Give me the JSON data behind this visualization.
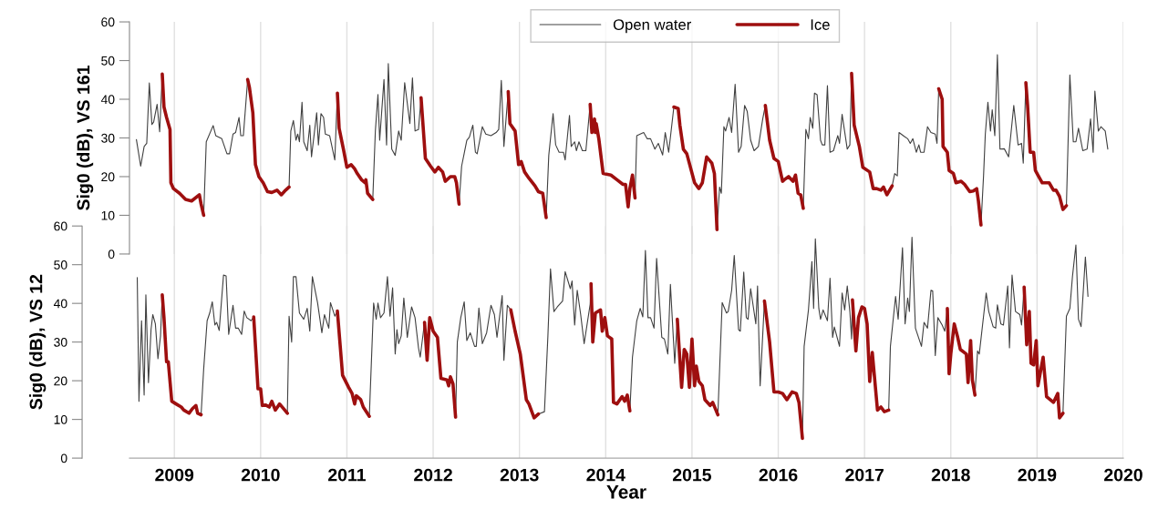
{
  "chart_data": [
    {
      "type": "line",
      "ylabel": "Sig0 (dB), VS 161",
      "xlim": [
        2008.48,
        2020
      ],
      "xticks": [
        2009,
        2010,
        2011,
        2012,
        2013,
        2014,
        2015,
        2016,
        2017,
        2018,
        2019,
        2020
      ],
      "ylim": [
        0,
        60
      ],
      "yticks": [
        0,
        10,
        20,
        30,
        40,
        50,
        60
      ],
      "tick_labels": "y",
      "grid": "x",
      "legend": "top",
      "series": [
        {
          "name": "Open water",
          "color": "#404040",
          "x": [
            2008.56,
            2008.61,
            2008.65,
            2008.68,
            2008.71,
            2008.74,
            2008.76,
            2008.8,
            2008.83,
            2008.86,
            null,
            2009.34,
            2009.37,
            2009.45,
            2009.48,
            2009.55,
            2009.61,
            2009.64,
            2009.68,
            2009.71,
            2009.75,
            2009.77,
            2009.8,
            2009.85,
            null,
            2010.33,
            2010.35,
            2010.38,
            2010.41,
            2010.43,
            2010.45,
            2010.48,
            2010.5,
            2010.54,
            2010.57,
            2010.59,
            2010.65,
            2010.67,
            2010.7,
            2010.73,
            2010.75,
            2010.8,
            2010.86,
            2010.89,
            null,
            2011.3,
            2011.33,
            2011.36,
            2011.38,
            2011.43,
            2011.46,
            2011.48,
            2011.52,
            2011.56,
            2011.6,
            2011.63,
            2011.67,
            2011.73,
            2011.76,
            2011.79,
            2011.83,
            2011.86,
            null,
            2012.3,
            2012.33,
            2012.39,
            2012.42,
            2012.46,
            2012.49,
            2012.51,
            2012.57,
            2012.61,
            2012.67,
            2012.73,
            2012.76,
            2012.79,
            2012.82,
            2012.87,
            null,
            2013.31,
            2013.34,
            2013.39,
            2013.42,
            2013.46,
            2013.51,
            2013.53,
            2013.58,
            2013.6,
            2013.64,
            2013.66,
            2013.69,
            2013.73,
            2013.77,
            2013.82,
            null,
            2014.34,
            2014.36,
            2014.4,
            2014.44,
            2014.48,
            2014.52,
            2014.57,
            2014.61,
            2014.66,
            2014.69,
            2014.73,
            2014.79,
            null,
            2015.29,
            2015.32,
            2015.34,
            2015.37,
            2015.39,
            2015.43,
            2015.46,
            2015.5,
            2015.54,
            2015.57,
            2015.61,
            2015.64,
            2015.68,
            2015.72,
            2015.77,
            2015.82,
            2015.85,
            null,
            2016.29,
            2016.32,
            2016.35,
            2016.37,
            2016.4,
            2016.42,
            2016.45,
            2016.49,
            2016.51,
            2016.54,
            2016.57,
            2016.6,
            2016.64,
            2016.69,
            2016.71,
            2016.74,
            2016.8,
            2016.83,
            2016.85,
            null,
            2017.32,
            2017.35,
            2017.38,
            2017.4,
            2017.46,
            2017.5,
            2017.53,
            2017.56,
            2017.6,
            2017.63,
            2017.65,
            2017.69,
            2017.73,
            2017.77,
            2017.82,
            2017.84,
            2017.86,
            null,
            2018.35,
            2018.38,
            2018.4,
            2018.43,
            2018.46,
            2018.48,
            2018.51,
            2018.54,
            2018.57,
            2018.62,
            2018.67,
            2018.73,
            2018.78,
            2018.82,
            2018.84,
            2018.87,
            null,
            2019.34,
            2019.38,
            2019.42,
            2019.45,
            2019.48,
            2019.53,
            2019.58,
            2019.62,
            2019.65,
            2019.67,
            2019.71,
            2019.74,
            2019.79,
            2019.82
          ],
          "values": [
            29.6,
            22.7,
            27.8,
            28.6,
            44.2,
            33.5,
            34.1,
            38.7,
            31.6,
            46.5,
            null,
            10.0,
            29,
            33.2,
            30.6,
            29.8,
            25.9,
            25.9,
            31,
            31.4,
            35.3,
            30.6,
            30.6,
            45.1,
            null,
            17.3,
            31.8,
            34.5,
            29.4,
            31,
            29,
            39.2,
            29,
            26.7,
            33.3,
            25.1,
            36.5,
            28.2,
            36.3,
            35.3,
            31,
            30.6,
            24.3,
            41.6,
            null,
            14.1,
            31.8,
            41.2,
            29.4,
            45.1,
            28.2,
            49.2,
            27.1,
            25.5,
            31.8,
            29.4,
            44.3,
            33.7,
            45.5,
            31.8,
            32.2,
            40.4,
            null,
            12.9,
            22.7,
            29.4,
            30.2,
            33.3,
            26.3,
            25.9,
            32.9,
            31,
            30.6,
            31.4,
            32.2,
            44.9,
            27.8,
            42,
            null,
            9.4,
            25.5,
            36.3,
            28.2,
            26.3,
            26.3,
            24.3,
            35.8,
            27.8,
            29,
            26.7,
            29,
            26.7,
            26.7,
            38.7,
            null,
            14.5,
            30.6,
            31,
            31.4,
            29.8,
            29.8,
            27.1,
            28.6,
            25.6,
            31.4,
            26.3,
            38,
            null,
            6.3,
            17.3,
            15.7,
            32.9,
            31.8,
            35.3,
            31.4,
            43.9,
            26.3,
            27.8,
            38.4,
            36.9,
            29.4,
            26.7,
            27.8,
            34.9,
            38.4,
            null,
            11.8,
            32.2,
            29.8,
            35.3,
            32.5,
            41.6,
            41.2,
            29.4,
            28.2,
            28.2,
            43.5,
            26.3,
            26.7,
            30.6,
            28.6,
            36.1,
            27.1,
            28.2,
            46.7,
            null,
            17.6,
            20.8,
            20.2,
            31.4,
            30.4,
            29.8,
            28.6,
            29.8,
            26.3,
            28.2,
            26.3,
            26.3,
            32.9,
            31.4,
            31,
            28.6,
            42.7,
            null,
            7.5,
            20.4,
            31,
            39.2,
            31.8,
            37.3,
            30.6,
            51.5,
            27.1,
            27.2,
            25.1,
            38.4,
            28.2,
            28.6,
            23.5,
            44.3,
            null,
            12.5,
            46.3,
            29,
            29,
            32.5,
            26.7,
            27.1,
            34.9,
            26.3,
            42.1,
            31.8,
            32.9,
            31.8,
            27.1
          ]
        },
        {
          "name": "Ice",
          "color": "#9e0f0f",
          "x": [
            2008.86,
            2008.88,
            2008.91,
            2008.95,
            2008.96,
            2008.99,
            2009.06,
            2009.13,
            2009.2,
            2009.29,
            2009.31,
            2009.34,
            null,
            2009.85,
            2009.87,
            2009.91,
            2009.94,
            2009.98,
            2010.03,
            2010.08,
            2010.13,
            2010.19,
            2010.24,
            2010.29,
            2010.33,
            null,
            2010.89,
            2010.91,
            2010.96,
            2011.0,
            2011.05,
            2011.09,
            2011.12,
            2011.17,
            2011.21,
            2011.22,
            2011.24,
            2011.3,
            null,
            2011.86,
            2011.91,
            2011.97,
            2012.02,
            2012.06,
            2012.11,
            2012.14,
            2012.2,
            2012.25,
            2012.27,
            2012.3,
            null,
            2012.87,
            2012.89,
            2012.95,
            2012.99,
            2013.02,
            2013.06,
            2013.11,
            2013.18,
            2013.22,
            2013.27,
            2013.31,
            null,
            2013.82,
            2013.84,
            2013.87,
            2013.88,
            2013.89,
            2013.92,
            2013.97,
            2014.06,
            2014.13,
            2014.2,
            2014.23,
            2014.26,
            2014.28,
            2014.31,
            2014.34,
            null,
            2014.79,
            2014.84,
            2014.86,
            2014.9,
            2014.94,
            2015.03,
            2015.08,
            2015.12,
            2015.17,
            2015.23,
            2015.26,
            2015.29,
            null,
            2015.85,
            2015.9,
            2015.95,
            2016.0,
            2016.05,
            2016.07,
            2016.12,
            2016.17,
            2016.2,
            2016.23,
            2016.26,
            2016.29,
            null,
            2016.85,
            2016.88,
            2016.94,
            2016.98,
            2017.06,
            2017.1,
            2017.14,
            2017.19,
            2017.22,
            2017.26,
            2017.32,
            null,
            2017.86,
            2017.9,
            2017.91,
            2017.96,
            2017.98,
            2018.03,
            2018.06,
            2018.12,
            2018.16,
            2018.22,
            2018.26,
            2018.3,
            2018.32,
            2018.35,
            null,
            2018.87,
            2018.89,
            2018.92,
            2018.96,
            2018.98,
            2019.01,
            2019.06,
            2019.14,
            2019.19,
            2019.22,
            2019.26,
            2019.3,
            2019.34
          ],
          "values": [
            46.5,
            38,
            35.3,
            32.2,
            18.4,
            16.9,
            15.7,
            14.1,
            13.7,
            15.3,
            12.9,
            10.0,
            null,
            45.1,
            43.1,
            36.5,
            23.1,
            20,
            18.4,
            16.1,
            15.9,
            16.5,
            15.3,
            16.5,
            17.3,
            null,
            41.6,
            32.5,
            27.1,
            22.4,
            23.1,
            22,
            20.8,
            19.2,
            18.4,
            19.2,
            15.7,
            14.1,
            null,
            40.4,
            24.7,
            22.7,
            21.2,
            22.4,
            21.2,
            18.8,
            20,
            20,
            18.4,
            12.9,
            null,
            42,
            33.7,
            31.8,
            23.1,
            23.9,
            21.2,
            19.6,
            17.6,
            16.1,
            15.7,
            9.4,
            null,
            38.7,
            31.4,
            34.9,
            31.4,
            33.7,
            29.8,
            20.8,
            20.4,
            19.2,
            18,
            18,
            12.2,
            16.9,
            20.4,
            14.5,
            null,
            38,
            37.6,
            33.3,
            27.1,
            25.9,
            18.4,
            16.9,
            18.4,
            25.1,
            23.5,
            20.8,
            6.3,
            null,
            38.4,
            29.4,
            24.7,
            23.9,
            18.8,
            19.2,
            20,
            18.8,
            20.4,
            15.7,
            15.3,
            11.8,
            null,
            46.7,
            33.3,
            27.8,
            22.4,
            21.2,
            16.9,
            16.9,
            16.5,
            17.3,
            15.3,
            17.6,
            null,
            42.7,
            40,
            27.8,
            26.3,
            21.6,
            20.8,
            18.4,
            18.8,
            18,
            16.1,
            16.3,
            16.9,
            13.7,
            7.5,
            null,
            44.3,
            38.4,
            26.3,
            26.3,
            21.6,
            20.4,
            18.4,
            18.4,
            16.5,
            16.5,
            14.9,
            11.5,
            12.5
          ]
        }
      ]
    },
    {
      "type": "line",
      "xlabel": "Year",
      "ylabel": "Sig0 (dB), VS 12",
      "xlim": [
        2008.48,
        2020
      ],
      "xticks": [
        2009,
        2010,
        2011,
        2012,
        2013,
        2014,
        2015,
        2016,
        2017,
        2018,
        2019,
        2020
      ],
      "ylim": [
        0,
        60
      ],
      "yticks": [
        0,
        10,
        20,
        30,
        40,
        50,
        60
      ],
      "grid": "x",
      "legend": false,
      "series": [
        {
          "color": "#404040",
          "x": [
            2008.57,
            2008.59,
            2008.62,
            2008.65,
            2008.67,
            2008.7,
            2008.73,
            2008.75,
            2008.78,
            2008.81,
            2008.84,
            2008.86,
            null,
            2009.31,
            2009.34,
            2009.38,
            2009.41,
            2009.44,
            2009.47,
            2009.49,
            2009.52,
            2009.57,
            2009.6,
            2009.63,
            2009.68,
            2009.71,
            2009.74,
            2009.78,
            2009.81,
            2009.84,
            2009.89,
            2009.92,
            null,
            2010.31,
            2010.33,
            2010.36,
            2010.38,
            2010.41,
            2010.45,
            2010.5,
            2010.54,
            2010.57,
            2010.6,
            2010.66,
            2010.71,
            2010.74,
            2010.79,
            2010.81,
            2010.86,
            2010.89,
            null,
            2011.26,
            2011.31,
            2011.34,
            2011.36,
            2011.39,
            2011.43,
            2011.47,
            2011.5,
            2011.53,
            2011.56,
            2011.58,
            2011.6,
            2011.63,
            2011.66,
            2011.7,
            2011.75,
            2011.79,
            2011.83,
            2011.85,
            2011.9,
            null,
            2012.26,
            2012.28,
            2012.32,
            2012.36,
            2012.39,
            2012.43,
            2012.48,
            2012.5,
            2012.53,
            2012.57,
            2012.62,
            2012.67,
            2012.71,
            2012.74,
            2012.8,
            2012.82,
            2012.86,
            2012.9,
            null,
            2013.22,
            2013.29,
            2013.33,
            2013.36,
            2013.4,
            2013.44,
            2013.5,
            2013.53,
            2013.59,
            2013.61,
            2013.64,
            2013.67,
            2013.71,
            2013.75,
            2013.82,
            2013.83,
            null,
            2014.28,
            2014.31,
            2014.36,
            2014.4,
            2014.43,
            2014.46,
            2014.49,
            2014.52,
            2014.56,
            2014.59,
            2014.65,
            2014.68,
            2014.72,
            2014.75,
            2014.8,
            2014.83,
            null,
            2015.3,
            2015.35,
            2015.4,
            2015.42,
            2015.46,
            2015.49,
            2015.54,
            2015.56,
            2015.6,
            2015.63,
            2015.65,
            2015.68,
            2015.74,
            2015.76,
            2015.79,
            2015.84,
            null,
            2016.28,
            2016.3,
            2016.35,
            2016.39,
            2016.41,
            2016.43,
            2016.47,
            2016.49,
            2016.52,
            2016.57,
            2016.6,
            2016.63,
            2016.65,
            2016.71,
            2016.74,
            2016.77,
            2016.8,
            2016.83,
            2016.85,
            2016.86,
            null,
            2017.28,
            2017.3,
            2017.36,
            2017.39,
            2017.44,
            2017.47,
            2017.5,
            2017.52,
            2017.55,
            2017.59,
            2017.66,
            2017.69,
            2017.73,
            2017.77,
            2017.79,
            2017.82,
            2017.85,
            2017.9,
            2017.93,
            2017.96,
            null,
            2018.28,
            2018.31,
            2018.33,
            2018.41,
            2018.44,
            2018.49,
            2018.52,
            2018.54,
            2018.58,
            2018.61,
            2018.66,
            2018.68,
            2018.71,
            2018.75,
            2018.8,
            2018.82,
            2018.85,
            null,
            2019.3,
            2019.34,
            2019.38,
            2019.41,
            2019.45,
            2019.48,
            2019.51,
            2019.56,
            2019.59
          ],
          "values": [
            46.7,
            14.7,
            35.5,
            16.3,
            42.2,
            19.5,
            33.2,
            37.1,
            34.7,
            25.7,
            31.6,
            42.2,
            null,
            11.2,
            23,
            35.5,
            37.5,
            40.4,
            34.4,
            35.1,
            33,
            47.3,
            47.1,
            32,
            39.5,
            33.6,
            33.6,
            32,
            38,
            36.3,
            35.5,
            36.5,
            null,
            11.6,
            36.7,
            30,
            46.9,
            46.9,
            37.5,
            35.9,
            38.7,
            32.8,
            46.9,
            40.2,
            32.4,
            37.1,
            33.6,
            40.2,
            36.7,
            38,
            null,
            10.8,
            40.1,
            35.9,
            40.1,
            36.3,
            37.5,
            46.9,
            36.7,
            44,
            26.9,
            33.2,
            29.6,
            31.6,
            41.4,
            31.2,
            39.1,
            36.3,
            28.5,
            26.1,
            35.1,
            null,
            10.6,
            30,
            36.3,
            40.4,
            30.4,
            32.4,
            28.9,
            28.9,
            38.8,
            29.6,
            32.4,
            39.5,
            37.1,
            31.2,
            42,
            25.3,
            39.5,
            38.3,
            null,
            11.4,
            12,
            31.6,
            48.9,
            37.9,
            39.1,
            40.6,
            48.2,
            43.8,
            45.8,
            34.4,
            43.4,
            37.1,
            29.6,
            39.8,
            45.1,
            null,
            12.2,
            26.1,
            35.5,
            38.7,
            36.5,
            53.7,
            36.3,
            36.3,
            33.6,
            51.6,
            31.2,
            30.8,
            26.9,
            44.9,
            24.5,
            35.9,
            null,
            11.2,
            40.2,
            37.5,
            37.9,
            43.4,
            52.4,
            33.2,
            32.8,
            48.1,
            36.3,
            35.9,
            43.8,
            34.7,
            44.5,
            18.7,
            40.6,
            null,
            5.1,
            28.9,
            38.3,
            50.8,
            38.7,
            56.7,
            38.7,
            35.9,
            38.3,
            35.5,
            46.5,
            31.2,
            33.9,
            28.9,
            42.7,
            38.3,
            44.5,
            37.9,
            30.8,
            40.9,
            null,
            12.4,
            28.9,
            41.8,
            35.9,
            54.4,
            34.7,
            41.4,
            37.9,
            57.1,
            33.6,
            28.9,
            35.1,
            33.6,
            43.4,
            43.2,
            26.5,
            36.3,
            34.4,
            32.8,
            38.7,
            null,
            16.3,
            27.7,
            26.9,
            42.7,
            37.9,
            34,
            33.6,
            39.6,
            34.7,
            34.4,
            44.5,
            28.5,
            47.3,
            37.9,
            37.1,
            34.4,
            44.2,
            null,
            11.6,
            36.7,
            38.7,
            46.9,
            55.1,
            35.9,
            34,
            52,
            41.8
          ]
        },
        {
          "color": "#9e0f0f",
          "x": [
            2008.86,
            2008.88,
            2008.91,
            2008.93,
            2008.97,
            2009.02,
            2009.08,
            2009.11,
            2009.17,
            2009.21,
            2009.25,
            2009.27,
            2009.31,
            null,
            2009.92,
            2009.97,
            2010.0,
            2010.02,
            2010.06,
            2010.1,
            2010.13,
            2010.17,
            2010.22,
            2010.28,
            2010.31,
            null,
            2010.89,
            2010.95,
            2011.02,
            2011.06,
            2011.09,
            2011.11,
            2011.16,
            2011.19,
            2011.26,
            null,
            2011.9,
            2011.93,
            2011.96,
            2012.0,
            2012.05,
            2012.09,
            2012.16,
            2012.18,
            2012.2,
            2012.23,
            2012.26,
            null,
            2012.9,
            2012.95,
            2013.01,
            2013.08,
            2013.11,
            2013.17,
            2013.22,
            null,
            2013.83,
            2013.85,
            2013.88,
            2013.94,
            2013.96,
            2013.99,
            2014.02,
            2014.07,
            2014.09,
            2014.13,
            2014.19,
            2014.22,
            2014.25,
            2014.28,
            null,
            2014.83,
            2014.88,
            2014.91,
            2014.94,
            2014.97,
            2015.0,
            2015.03,
            2015.05,
            2015.08,
            2015.12,
            2015.15,
            2015.21,
            2015.24,
            2015.3,
            null,
            2015.84,
            2015.9,
            2015.95,
            2016.0,
            2016.05,
            2016.1,
            2016.16,
            2016.21,
            2016.24,
            2016.28,
            null,
            2016.86,
            2016.9,
            2016.93,
            2016.97,
            2017.0,
            2017.03,
            2017.06,
            2017.09,
            2017.15,
            2017.19,
            2017.23,
            2017.28,
            null,
            2017.96,
            2017.98,
            2018.0,
            2018.04,
            2018.08,
            2018.11,
            2018.18,
            2018.2,
            2018.23,
            2018.25,
            2018.28,
            null,
            2018.85,
            2018.88,
            2018.91,
            2018.93,
            2018.96,
            2018.99,
            2019.01,
            2019.07,
            2019.11,
            2019.19,
            2019.24,
            2019.26,
            2019.3
          ],
          "values": [
            42.2,
            36.3,
            24.9,
            24.9,
            14.7,
            14,
            13.2,
            12.4,
            11.6,
            12.8,
            13.6,
            11.6,
            11.2,
            null,
            36.5,
            17.9,
            17.9,
            13.6,
            13.7,
            13.2,
            14.7,
            12.4,
            14,
            12.4,
            11.6,
            null,
            38,
            21.4,
            18.3,
            16.7,
            14,
            16.1,
            15.1,
            13.2,
            10.8,
            null,
            35.1,
            25.3,
            36.3,
            32.8,
            31.2,
            20.6,
            20.2,
            18.7,
            21,
            19.2,
            10.6,
            null,
            38.3,
            32.8,
            26.9,
            15.1,
            14,
            10.4,
            11.4,
            null,
            45.1,
            30,
            37.5,
            38.3,
            32.8,
            36.3,
            31.6,
            30.8,
            14.4,
            14,
            15.9,
            14.7,
            16.3,
            12.2,
            null,
            35.9,
            18.3,
            28.1,
            26.9,
            18.3,
            30.8,
            18.7,
            23.8,
            19.8,
            18.7,
            15.1,
            13.6,
            14.4,
            11.2,
            null,
            40.6,
            30,
            17.1,
            17.1,
            16.7,
            15.1,
            17.1,
            16.7,
            14.4,
            5.1,
            null,
            40.9,
            27.7,
            36.3,
            39.1,
            38.7,
            34.7,
            19.8,
            27.3,
            12.4,
            13.2,
            12,
            12.4,
            null,
            38.7,
            21.8,
            26.9,
            34.7,
            31.2,
            28.1,
            26.9,
            19.5,
            30.4,
            20.2,
            16.3,
            null,
            44.2,
            29.3,
            37.9,
            24.5,
            24.1,
            30.4,
            18.7,
            26.1,
            15.9,
            14.4,
            16.7,
            10.4,
            11.6
          ]
        }
      ]
    }
  ]
}
